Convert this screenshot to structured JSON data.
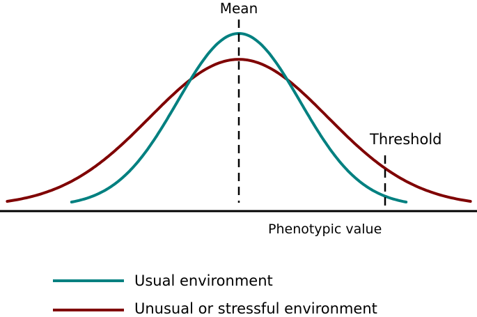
{
  "labels": {
    "mean": "Mean",
    "threshold": "Threshold",
    "x_axis": "Phenotypic value"
  },
  "legend": [
    {
      "label": "Usual environment",
      "color": "#008080"
    },
    {
      "label": "Unusual or stressful environment",
      "color": "#7f0000"
    }
  ],
  "colors": {
    "axis": "#000000",
    "usual": "#008080",
    "stressful": "#7f0000"
  },
  "distributions": {
    "usual": {
      "mean": 0,
      "sd": 1.0,
      "peak_height": 1.0
    },
    "stressful": {
      "mean": 0,
      "sd": 1.45,
      "peak_height": 0.85
    }
  },
  "markers": {
    "mean": 0,
    "threshold": 2.4
  }
}
